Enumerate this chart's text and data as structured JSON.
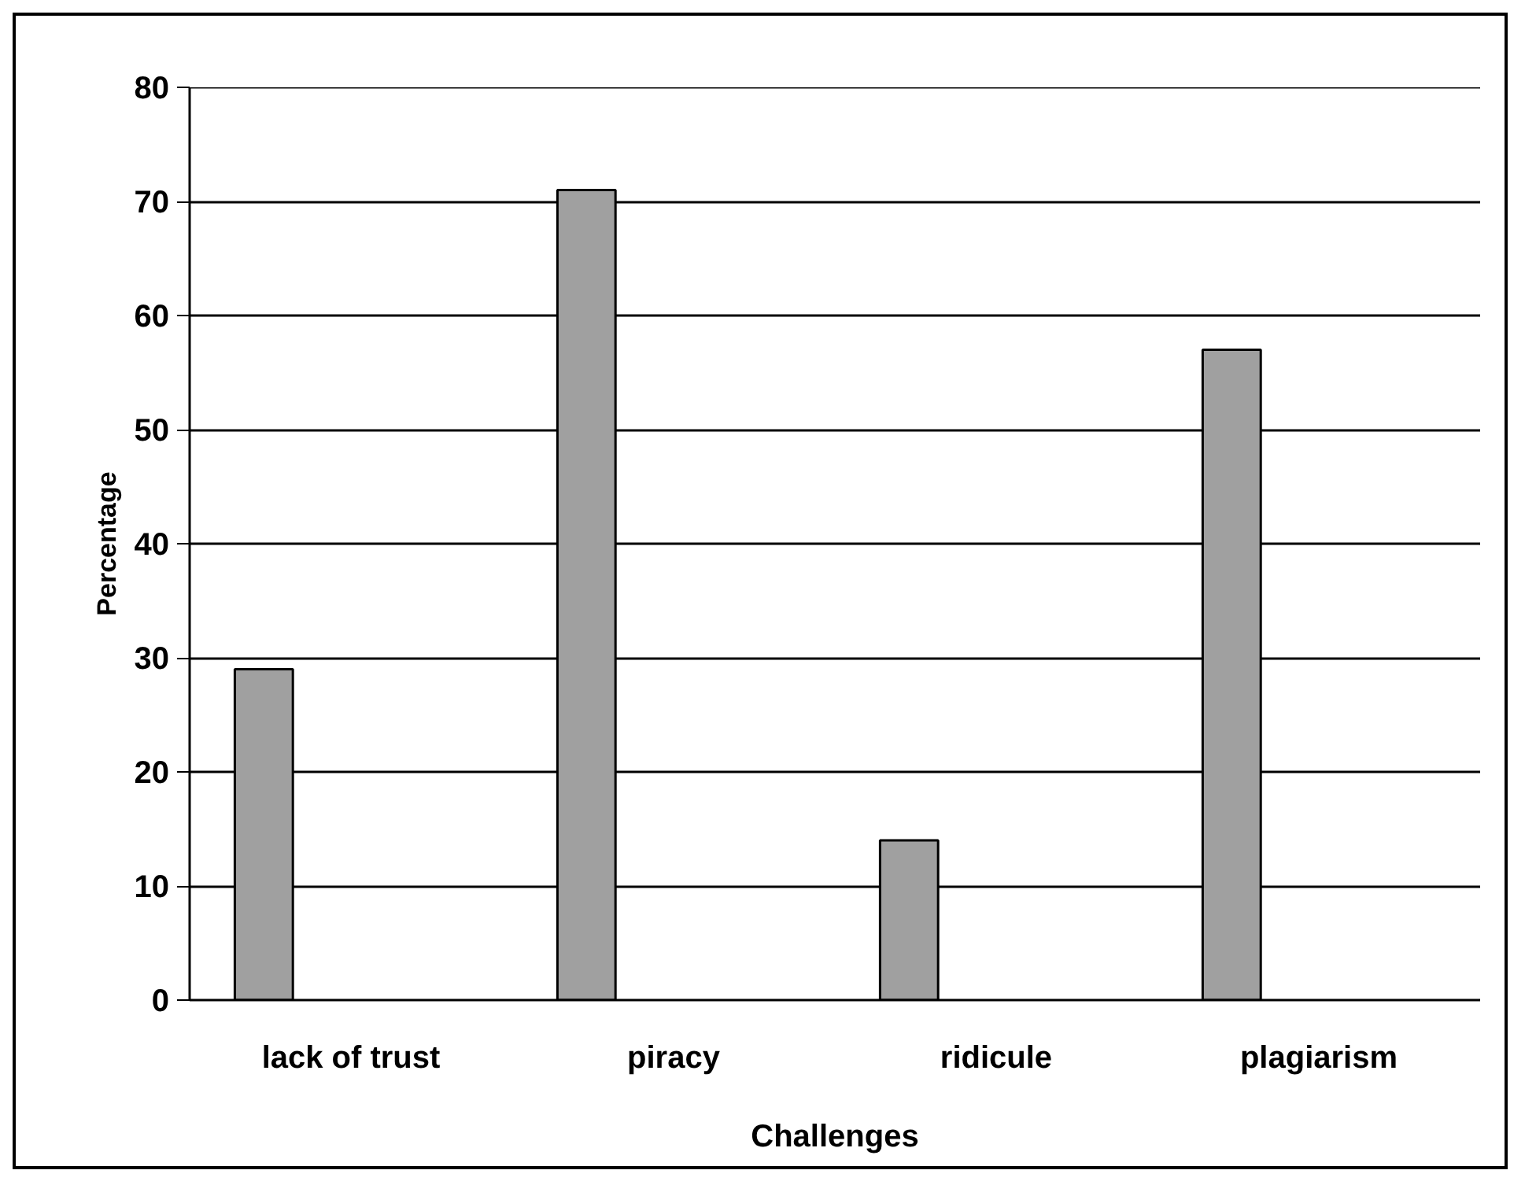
{
  "chart_data": {
    "type": "bar",
    "xlabel": "Challenges",
    "ylabel": "Percentage",
    "categories": [
      "lack of trust",
      "piracy",
      "ridicule",
      "plagiarism"
    ],
    "values": [
      29,
      71,
      14,
      57
    ],
    "color": "#a0a0a0",
    "ylim": [
      0,
      80
    ],
    "yticks": [
      0,
      10,
      20,
      30,
      40,
      50,
      60,
      70,
      80
    ],
    "grid": "y"
  }
}
